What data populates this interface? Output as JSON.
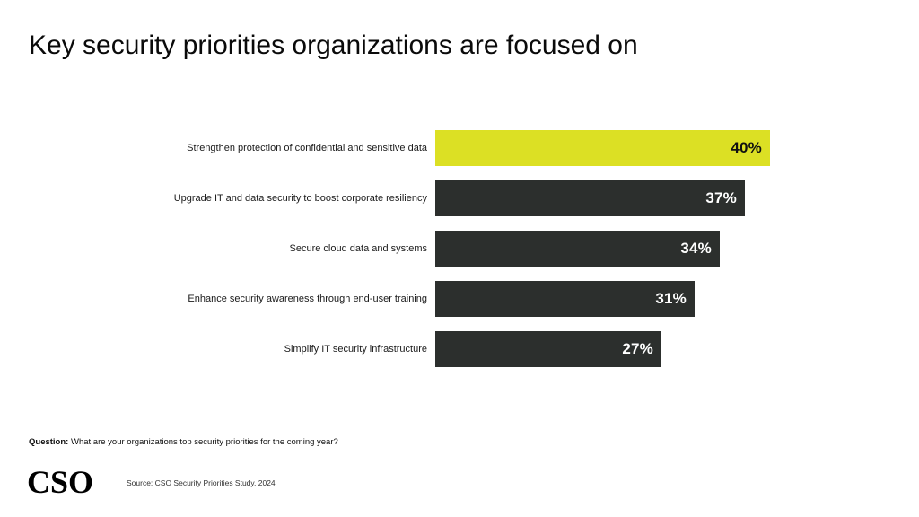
{
  "chart_data": {
    "type": "bar",
    "orientation": "horizontal",
    "title": "Key security priorities organizations are focused on",
    "categories": [
      "Strengthen protection of confidential and sensitive data",
      "Upgrade IT and data security to boost corporate resiliency",
      "Secure cloud data and systems",
      "Enhance security awareness through end-user training",
      "Simplify IT security infrastructure"
    ],
    "values": [
      40,
      37,
      34,
      31,
      27
    ],
    "value_suffix": "%",
    "xlim": [
      0,
      40
    ],
    "grid": false,
    "legend": "none",
    "highlight_index": 0,
    "colors": {
      "bar_highlight": "#dce024",
      "bar_default": "#2c2f2d",
      "value_on_highlight": "#111111",
      "value_on_default": "#ffffff"
    }
  },
  "footer": {
    "question_label": "Question:",
    "question_text": " What are your organizations top security priorities for the coming year?",
    "source": "Source: CSO Security Priorities Study, 2024",
    "logo": "CSO"
  }
}
